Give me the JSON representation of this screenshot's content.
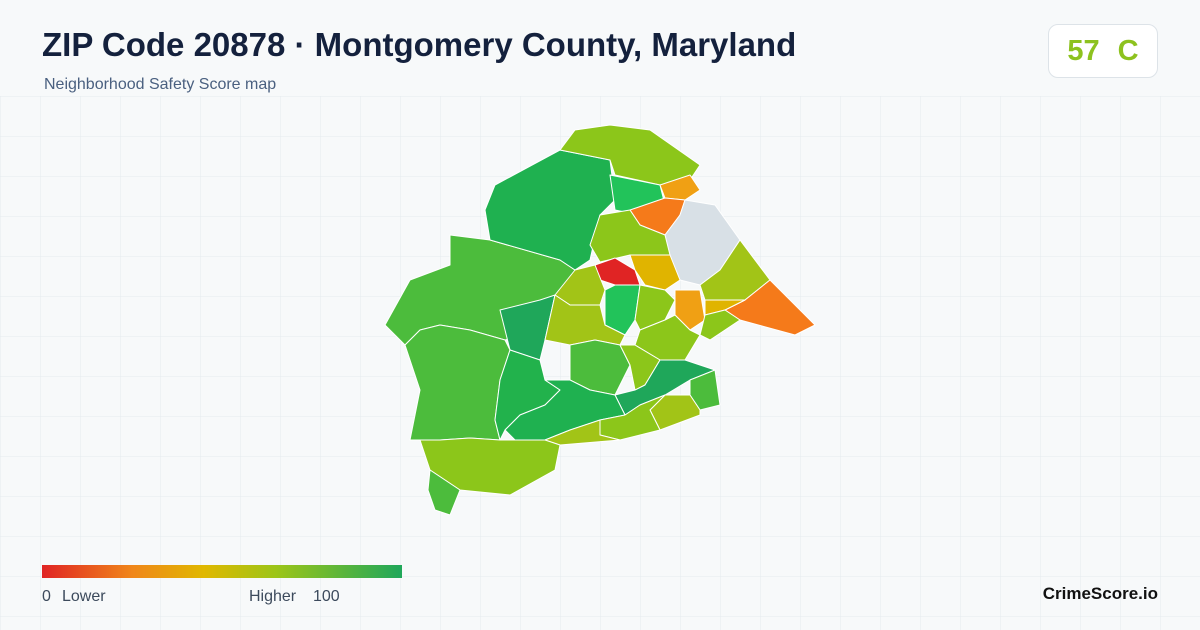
{
  "header": {
    "title": "ZIP Code 20878 · Montgomery County, Maryland",
    "subtitle": "Neighborhood Safety Score map"
  },
  "score": {
    "value": 57,
    "grade": "C"
  },
  "legend": {
    "min": 0,
    "min_label": "Lower",
    "max_label": "Higher",
    "max": 100
  },
  "brand": "CrimeScore.io"
}
